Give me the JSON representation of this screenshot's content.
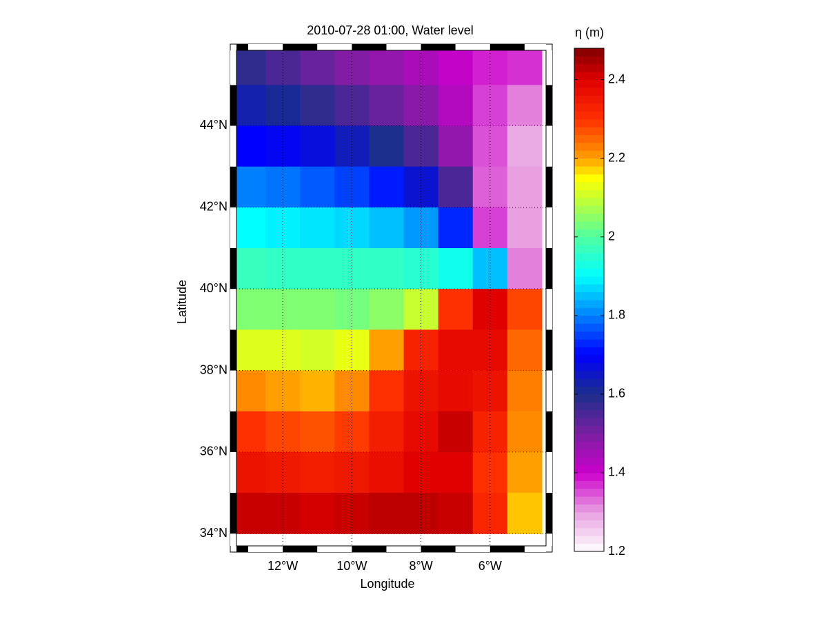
{
  "chart_data": {
    "type": "heatmap",
    "title": "2010-07-28 01:00, Water level",
    "xlabel": "Longitude",
    "ylabel": "Latitude",
    "colorbar_label": "η (m)",
    "x": [
      -13,
      -12,
      -11,
      -10,
      -9,
      -8,
      -7,
      -6,
      -5
    ],
    "y": [
      45.5,
      44.5,
      43.5,
      42.5,
      41.5,
      40.5,
      39.5,
      38.5,
      37.5,
      36.5,
      35.5,
      34.5
    ],
    "z": [
      [
        1.58,
        1.55,
        1.52,
        1.49,
        1.47,
        1.44,
        1.41,
        1.38,
        1.37
      ],
      [
        1.63,
        1.61,
        1.58,
        1.55,
        1.52,
        1.48,
        1.43,
        1.36,
        1.32
      ],
      [
        1.7,
        1.69,
        1.67,
        1.64,
        1.6,
        1.55,
        1.47,
        1.35,
        1.29
      ],
      [
        1.8,
        1.79,
        1.77,
        1.75,
        1.72,
        1.66,
        1.55,
        1.34,
        1.3
      ],
      [
        1.9,
        1.89,
        1.88,
        1.87,
        1.85,
        1.82,
        1.73,
        1.36,
        1.3
      ],
      [
        1.97,
        1.96,
        1.96,
        1.96,
        1.96,
        1.95,
        1.92,
        1.85,
        1.32
      ],
      [
        2.04,
        2.04,
        2.04,
        2.03,
        2.05,
        2.1,
        2.3,
        2.4,
        2.28
      ],
      [
        2.12,
        2.12,
        2.11,
        2.13,
        2.2,
        2.33,
        2.38,
        2.38,
        2.25
      ],
      [
        2.22,
        2.2,
        2.19,
        2.22,
        2.3,
        2.36,
        2.38,
        2.36,
        2.23
      ],
      [
        2.3,
        2.28,
        2.27,
        2.29,
        2.34,
        2.38,
        2.42,
        2.33,
        2.22
      ],
      [
        2.36,
        2.35,
        2.34,
        2.35,
        2.37,
        2.4,
        2.4,
        2.3,
        2.2
      ],
      [
        2.42,
        2.42,
        2.41,
        2.42,
        2.43,
        2.43,
        2.42,
        2.32,
        2.18
      ]
    ],
    "xlim": [
      -13.34,
      -4.38
    ],
    "ylim": [
      33.7,
      45.85
    ],
    "xticks": [
      {
        "value": -12,
        "label": "12°W"
      },
      {
        "value": -10,
        "label": "10°W"
      },
      {
        "value": -8,
        "label": "8°W"
      },
      {
        "value": -6,
        "label": "6°W"
      }
    ],
    "yticks": [
      {
        "value": 34,
        "label": "34°N"
      },
      {
        "value": 36,
        "label": "36°N"
      },
      {
        "value": 38,
        "label": "38°N"
      },
      {
        "value": 40,
        "label": "40°N"
      },
      {
        "value": 42,
        "label": "42°N"
      },
      {
        "value": 44,
        "label": "44°N"
      }
    ],
    "clim": [
      1.2,
      2.48
    ],
    "cticks": [
      1.2,
      1.4,
      1.6,
      1.8,
      2,
      2.2,
      2.4
    ],
    "colorscale": [
      {
        "value": 1.2,
        "color": "#ffffff"
      },
      {
        "value": 1.3,
        "color": "#e8a0e0"
      },
      {
        "value": 1.4,
        "color": "#cc00cc"
      },
      {
        "value": 1.5,
        "color": "#7a1fa0"
      },
      {
        "value": 1.6,
        "color": "#1c2f8a"
      },
      {
        "value": 1.7,
        "color": "#0000ff"
      },
      {
        "value": 1.8,
        "color": "#0080ff"
      },
      {
        "value": 1.9,
        "color": "#00ffff"
      },
      {
        "value": 2.0,
        "color": "#50ffa0"
      },
      {
        "value": 2.1,
        "color": "#c8ff30"
      },
      {
        "value": 2.15,
        "color": "#ffff00"
      },
      {
        "value": 2.2,
        "color": "#ffa000"
      },
      {
        "value": 2.3,
        "color": "#ff3000"
      },
      {
        "value": 2.4,
        "color": "#e00000"
      },
      {
        "value": 2.48,
        "color": "#800000"
      }
    ],
    "grid": true
  }
}
